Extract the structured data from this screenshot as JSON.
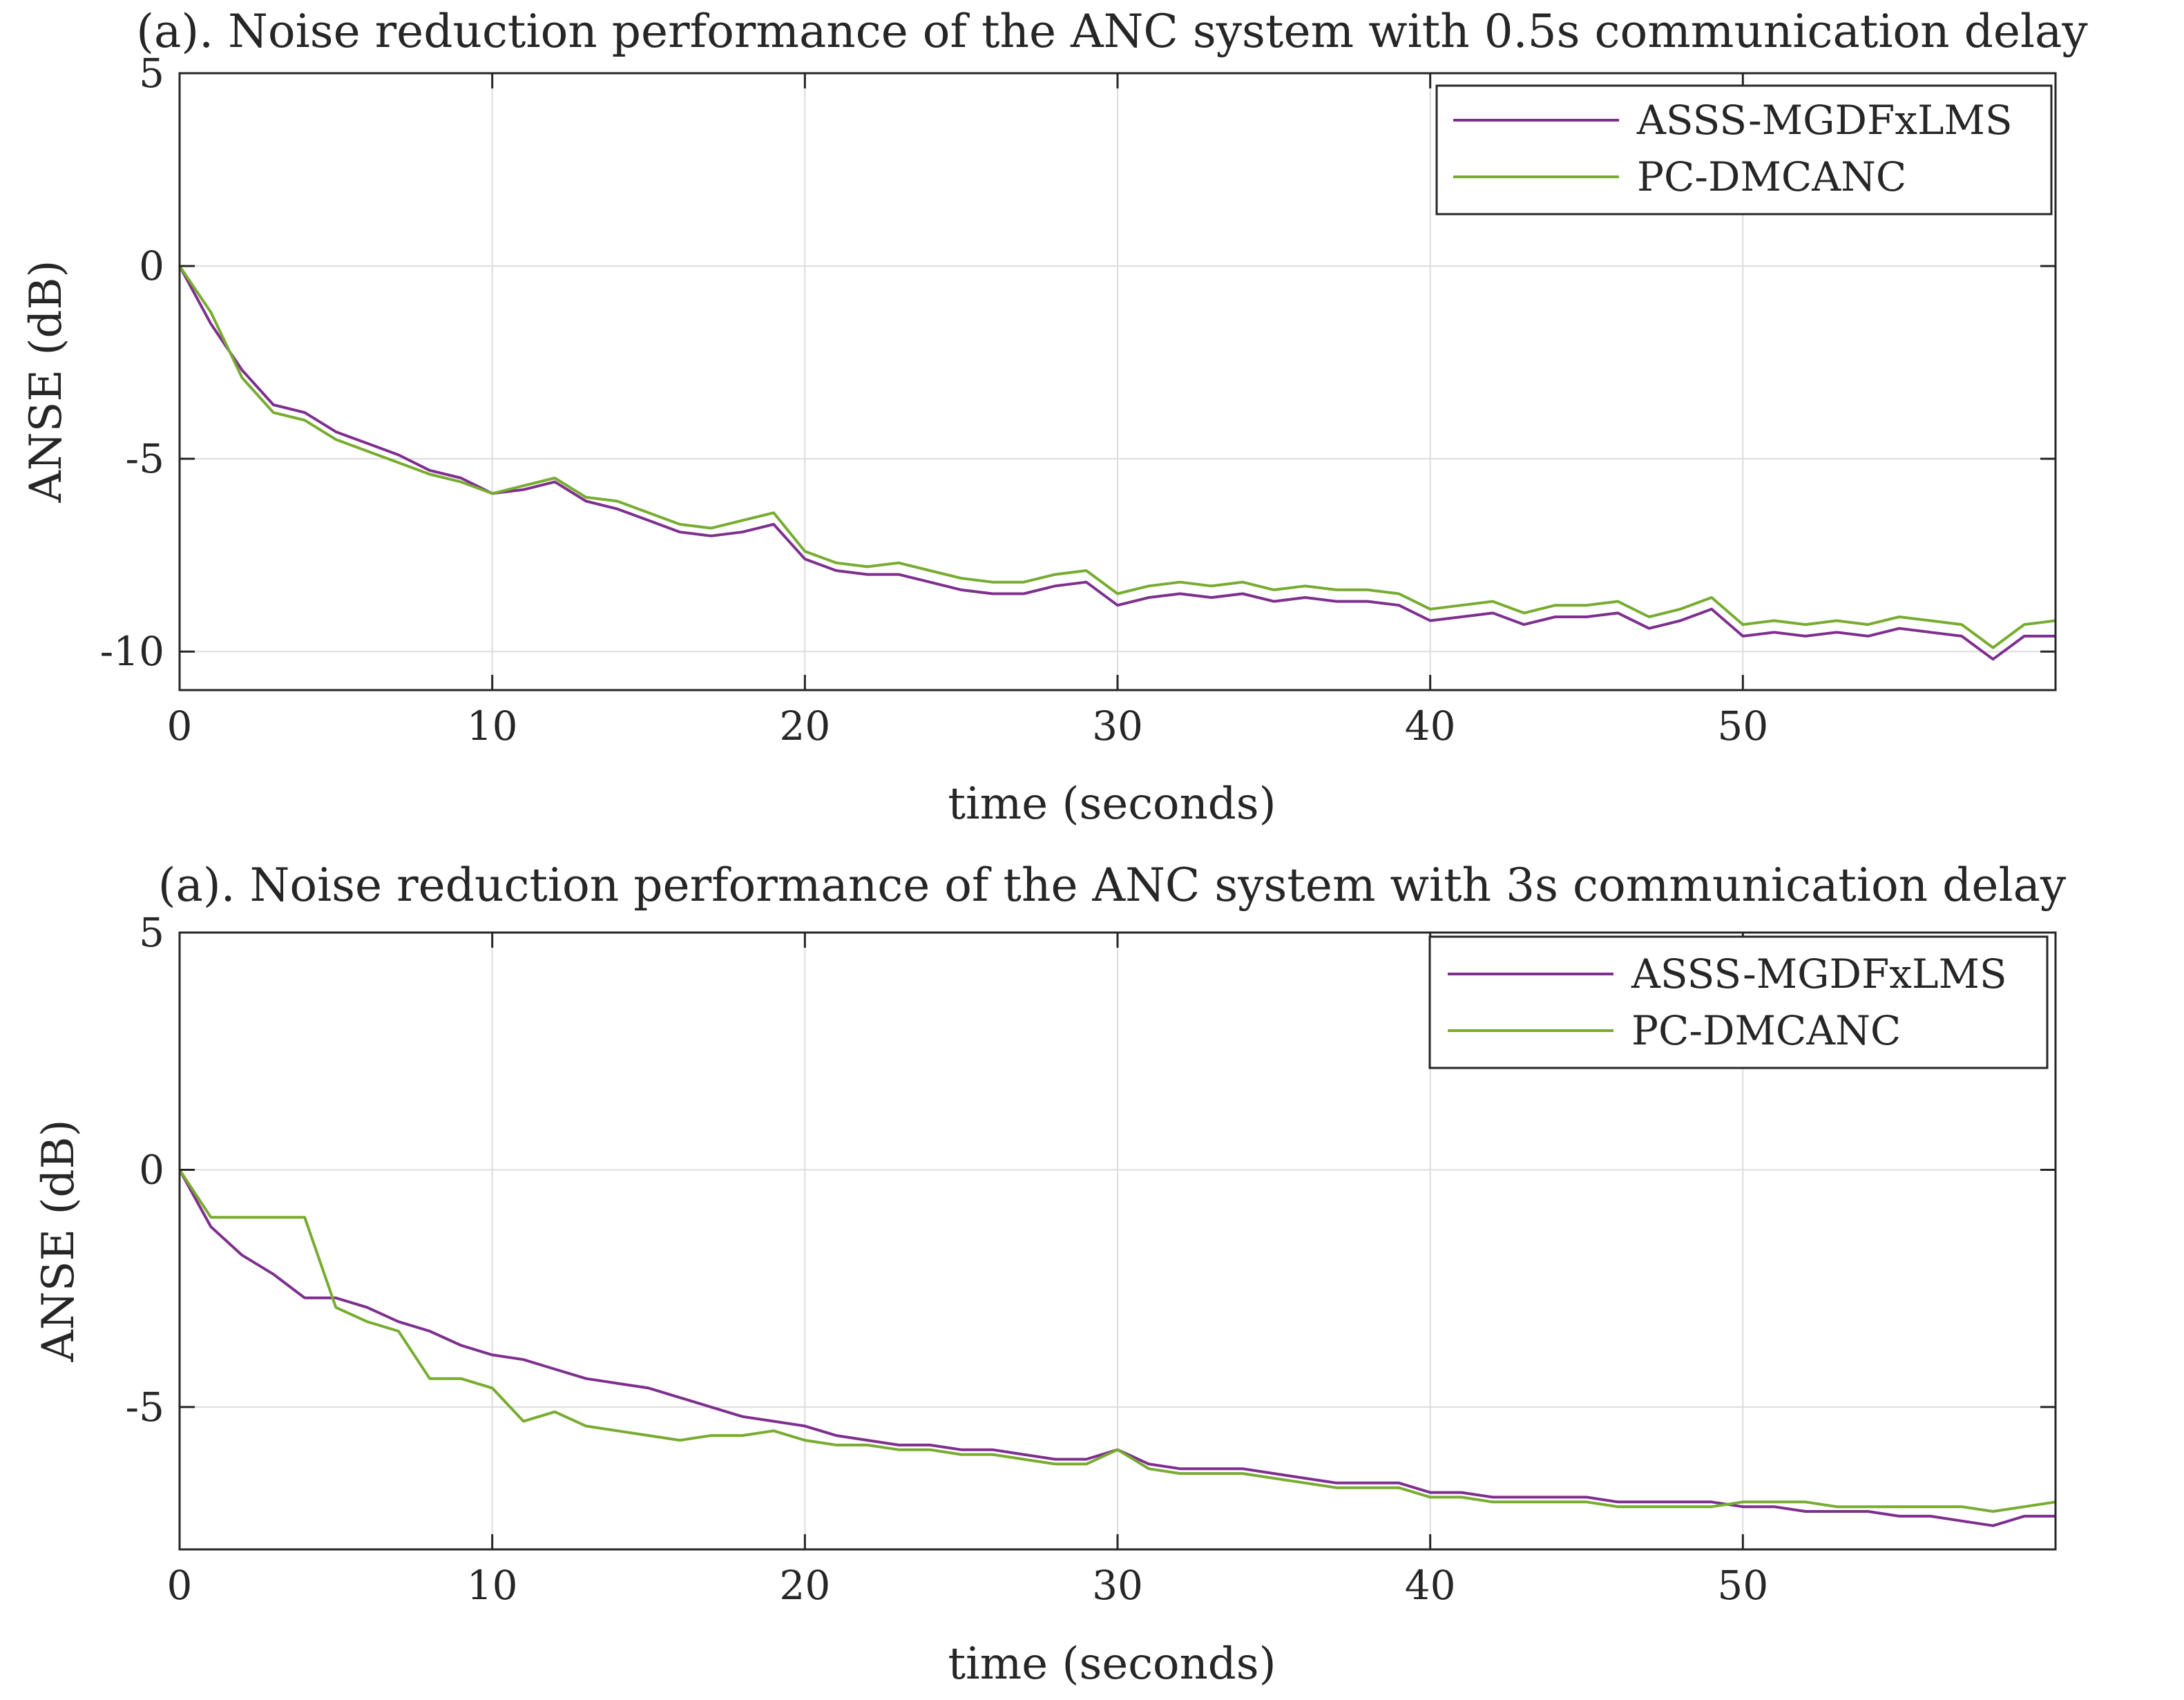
{
  "chart_data": [
    {
      "type": "line",
      "title": "(a). Noise reduction performance of the ANC system with 0.5s communication delay",
      "xlabel": "time (seconds)",
      "ylabel": "ANSE (dB)",
      "xlim": [
        0,
        60
      ],
      "ylim": [
        -11,
        5
      ],
      "xticks": [
        0,
        10,
        20,
        30,
        40,
        50
      ],
      "yticks": [
        -10,
        -5,
        0,
        5
      ],
      "xtick_labels": [
        "0",
        "10",
        "20",
        "30",
        "40",
        "50"
      ],
      "ytick_labels": [
        "-10",
        "-5",
        "0",
        "5"
      ],
      "grid": true,
      "legend_position": "top-right",
      "series": [
        {
          "name": "ASSS-MGDFxLMS",
          "color": "#7e2f8e",
          "x": [
            0,
            1,
            2,
            3,
            4,
            5,
            6,
            7,
            8,
            9,
            10,
            11,
            12,
            13,
            14,
            15,
            16,
            17,
            18,
            19,
            20,
            21,
            22,
            23,
            24,
            25,
            26,
            27,
            28,
            29,
            30,
            31,
            32,
            33,
            34,
            35,
            36,
            37,
            38,
            39,
            40,
            41,
            42,
            43,
            44,
            45,
            46,
            47,
            48,
            49,
            50,
            51,
            52,
            53,
            54,
            55,
            56,
            57,
            58,
            59,
            60
          ],
          "values": [
            0,
            -1.5,
            -2.7,
            -3.6,
            -3.8,
            -4.3,
            -4.6,
            -4.9,
            -5.3,
            -5.5,
            -5.9,
            -5.8,
            -5.6,
            -6.1,
            -6.3,
            -6.6,
            -6.9,
            -7.0,
            -6.9,
            -6.7,
            -7.6,
            -7.9,
            -8.0,
            -8.0,
            -8.2,
            -8.4,
            -8.5,
            -8.5,
            -8.3,
            -8.2,
            -8.8,
            -8.6,
            -8.5,
            -8.6,
            -8.5,
            -8.7,
            -8.6,
            -8.7,
            -8.7,
            -8.8,
            -9.2,
            -9.1,
            -9.0,
            -9.3,
            -9.1,
            -9.1,
            -9.0,
            -9.4,
            -9.2,
            -8.9,
            -9.6,
            -9.5,
            -9.6,
            -9.5,
            -9.6,
            -9.4,
            -9.5,
            -9.6,
            -10.2,
            -9.6,
            -9.6
          ]
        },
        {
          "name": "PC-DMCANC",
          "color": "#77ac30",
          "x": [
            0,
            1,
            2,
            3,
            4,
            5,
            6,
            7,
            8,
            9,
            10,
            11,
            12,
            13,
            14,
            15,
            16,
            17,
            18,
            19,
            20,
            21,
            22,
            23,
            24,
            25,
            26,
            27,
            28,
            29,
            30,
            31,
            32,
            33,
            34,
            35,
            36,
            37,
            38,
            39,
            40,
            41,
            42,
            43,
            44,
            45,
            46,
            47,
            48,
            49,
            50,
            51,
            52,
            53,
            54,
            55,
            56,
            57,
            58,
            59,
            60
          ],
          "values": [
            0,
            -1.2,
            -2.9,
            -3.8,
            -4.0,
            -4.5,
            -4.8,
            -5.1,
            -5.4,
            -5.6,
            -5.9,
            -5.7,
            -5.5,
            -6.0,
            -6.1,
            -6.4,
            -6.7,
            -6.8,
            -6.6,
            -6.4,
            -7.4,
            -7.7,
            -7.8,
            -7.7,
            -7.9,
            -8.1,
            -8.2,
            -8.2,
            -8.0,
            -7.9,
            -8.5,
            -8.3,
            -8.2,
            -8.3,
            -8.2,
            -8.4,
            -8.3,
            -8.4,
            -8.4,
            -8.5,
            -8.9,
            -8.8,
            -8.7,
            -9.0,
            -8.8,
            -8.8,
            -8.7,
            -9.1,
            -8.9,
            -8.6,
            -9.3,
            -9.2,
            -9.3,
            -9.2,
            -9.3,
            -9.1,
            -9.2,
            -9.3,
            -9.9,
            -9.3,
            -9.2
          ]
        }
      ]
    },
    {
      "type": "line",
      "title": "(a). Noise reduction performance of the ANC system with 3s communication delay",
      "xlabel": "time (seconds)",
      "ylabel": "ANSE (dB)",
      "xlim": [
        0,
        60
      ],
      "ylim": [
        -8,
        5
      ],
      "xticks": [
        0,
        10,
        20,
        30,
        40,
        50
      ],
      "yticks": [
        -5,
        0,
        5
      ],
      "xtick_labels": [
        "0",
        "10",
        "20",
        "30",
        "40",
        "50"
      ],
      "ytick_labels": [
        "-5",
        "0",
        "5"
      ],
      "grid": true,
      "legend_position": "top-right",
      "series": [
        {
          "name": "ASSS-MGDFxLMS",
          "color": "#7e2f8e",
          "x": [
            0,
            1,
            2,
            3,
            4,
            5,
            6,
            7,
            8,
            9,
            10,
            11,
            12,
            13,
            14,
            15,
            16,
            17,
            18,
            19,
            20,
            21,
            22,
            23,
            24,
            25,
            26,
            27,
            28,
            29,
            30,
            31,
            32,
            33,
            34,
            35,
            36,
            37,
            38,
            39,
            40,
            41,
            42,
            43,
            44,
            45,
            46,
            47,
            48,
            49,
            50,
            51,
            52,
            53,
            54,
            55,
            56,
            57,
            58,
            59,
            60
          ],
          "values": [
            0,
            -1.2,
            -1.8,
            -2.2,
            -2.7,
            -2.7,
            -2.9,
            -3.2,
            -3.4,
            -3.7,
            -3.9,
            -4.0,
            -4.2,
            -4.4,
            -4.5,
            -4.6,
            -4.8,
            -5.0,
            -5.2,
            -5.3,
            -5.4,
            -5.6,
            -5.7,
            -5.8,
            -5.8,
            -5.9,
            -5.9,
            -6.0,
            -6.1,
            -6.1,
            -5.9,
            -6.2,
            -6.3,
            -6.3,
            -6.3,
            -6.4,
            -6.5,
            -6.6,
            -6.6,
            -6.6,
            -6.8,
            -6.8,
            -6.9,
            -6.9,
            -6.9,
            -6.9,
            -7.0,
            -7.0,
            -7.0,
            -7.0,
            -7.1,
            -7.1,
            -7.2,
            -7.2,
            -7.2,
            -7.3,
            -7.3,
            -7.4,
            -7.5,
            -7.3,
            -7.3
          ]
        },
        {
          "name": "PC-DMCANC",
          "color": "#77ac30",
          "x": [
            0,
            1,
            2,
            3,
            4,
            5,
            6,
            7,
            8,
            9,
            10,
            11,
            12,
            13,
            14,
            15,
            16,
            17,
            18,
            19,
            20,
            21,
            22,
            23,
            24,
            25,
            26,
            27,
            28,
            29,
            30,
            31,
            32,
            33,
            34,
            35,
            36,
            37,
            38,
            39,
            40,
            41,
            42,
            43,
            44,
            45,
            46,
            47,
            48,
            49,
            50,
            51,
            52,
            53,
            54,
            55,
            56,
            57,
            58,
            59,
            60
          ],
          "values": [
            0,
            -1.0,
            -1.0,
            -1.0,
            -1.0,
            -2.9,
            -3.2,
            -3.4,
            -4.4,
            -4.4,
            -4.6,
            -5.3,
            -5.1,
            -5.4,
            -5.5,
            -5.6,
            -5.7,
            -5.6,
            -5.6,
            -5.5,
            -5.7,
            -5.8,
            -5.8,
            -5.9,
            -5.9,
            -6.0,
            -6.0,
            -6.1,
            -6.2,
            -6.2,
            -5.9,
            -6.3,
            -6.4,
            -6.4,
            -6.4,
            -6.5,
            -6.6,
            -6.7,
            -6.7,
            -6.7,
            -6.9,
            -6.9,
            -7.0,
            -7.0,
            -7.0,
            -7.0,
            -7.1,
            -7.1,
            -7.1,
            -7.1,
            -7.0,
            -7.0,
            -7.0,
            -7.1,
            -7.1,
            -7.1,
            -7.1,
            -7.1,
            -7.2,
            -7.1,
            -7.0
          ]
        }
      ]
    }
  ]
}
